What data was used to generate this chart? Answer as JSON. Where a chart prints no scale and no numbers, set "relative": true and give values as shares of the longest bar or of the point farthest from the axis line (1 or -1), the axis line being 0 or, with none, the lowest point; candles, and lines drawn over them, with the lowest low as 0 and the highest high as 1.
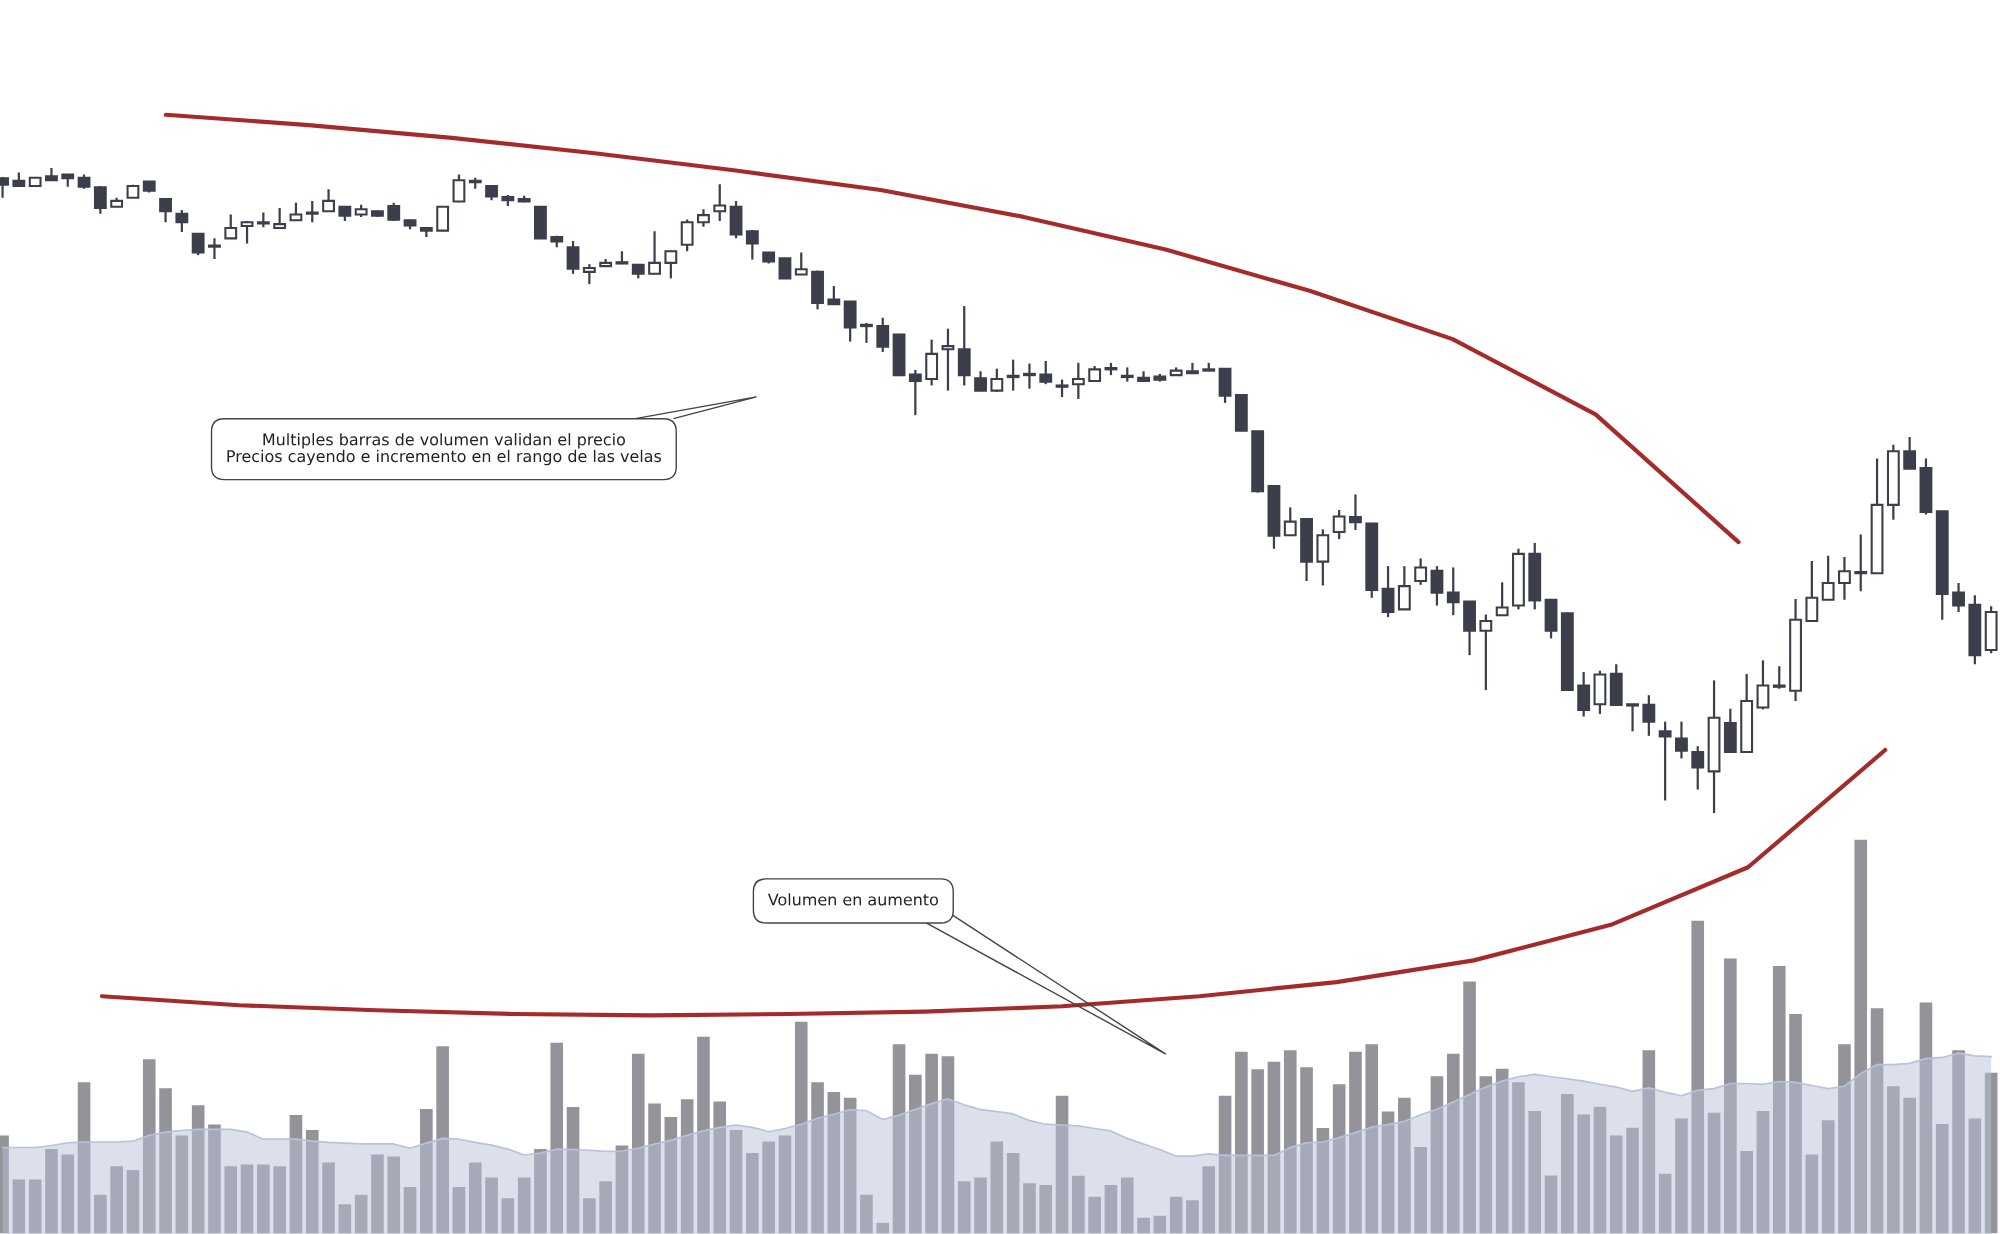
{
  "chart_data": [
    {
      "type": "candlestick",
      "relative": true,
      "color": "#3c3f4b",
      "categories": [
        null,
        null,
        null,
        null,
        null,
        null,
        null,
        null,
        null,
        null,
        null,
        null,
        null,
        null,
        null,
        null,
        null,
        null,
        null,
        null,
        null,
        null,
        null,
        null,
        null,
        null,
        null,
        null,
        null,
        null,
        null,
        null,
        null,
        null,
        null,
        null,
        null,
        null,
        null,
        null,
        null,
        null,
        null,
        null,
        null,
        null,
        null,
        null,
        null,
        null,
        null,
        null,
        null,
        null,
        null,
        null,
        null,
        null,
        null,
        null,
        null,
        null,
        null,
        null,
        null,
        null,
        null,
        null,
        null,
        null,
        null,
        null,
        null,
        null,
        null,
        null,
        null,
        null,
        null,
        null,
        null,
        null,
        null,
        null,
        null,
        null,
        null,
        null,
        null,
        null,
        null,
        null,
        null,
        null,
        null,
        null,
        null,
        null,
        null,
        null,
        null,
        null,
        null,
        null,
        null,
        null,
        null,
        null,
        null,
        null,
        null,
        null,
        null,
        null,
        null,
        null,
        null,
        null,
        null,
        null,
        null,
        null,
        null
      ],
      "ohlc": [
        [
          0.984,
          0.986,
          0.954,
          0.974
        ],
        [
          0.98,
          0.993,
          0.971,
          0.972
        ],
        [
          0.972,
          0.986,
          0.971,
          0.985
        ],
        [
          0.987,
          1.0,
          0.981,
          0.981
        ],
        [
          0.99,
          0.99,
          0.971,
          0.984
        ],
        [
          0.985,
          0.99,
          0.968,
          0.971
        ],
        [
          0.97,
          0.972,
          0.929,
          0.938
        ],
        [
          0.94,
          0.954,
          0.94,
          0.949
        ],
        [
          0.954,
          0.974,
          0.954,
          0.972
        ],
        [
          0.979,
          0.98,
          0.962,
          0.965
        ],
        [
          0.952,
          0.952,
          0.916,
          0.933
        ],
        [
          0.929,
          0.935,
          0.901,
          0.916
        ],
        [
          0.898,
          0.899,
          0.865,
          0.869
        ],
        [
          0.88,
          0.891,
          0.859,
          0.878
        ],
        [
          0.891,
          0.928,
          0.891,
          0.907
        ],
        [
          0.91,
          0.918,
          0.883,
          0.916
        ],
        [
          0.914,
          0.931,
          0.908,
          0.915
        ],
        [
          0.907,
          0.938,
          0.907,
          0.913
        ],
        [
          0.919,
          0.946,
          0.918,
          0.928
        ],
        [
          0.93,
          0.949,
          0.916,
          0.929
        ],
        [
          0.933,
          0.967,
          0.932,
          0.949
        ],
        [
          0.94,
          0.941,
          0.918,
          0.926
        ],
        [
          0.928,
          0.943,
          0.924,
          0.936
        ],
        [
          0.933,
          0.934,
          0.924,
          0.926
        ],
        [
          0.941,
          0.946,
          0.918,
          0.92
        ],
        [
          0.919,
          0.92,
          0.905,
          0.911
        ],
        [
          0.907,
          0.908,
          0.893,
          0.903
        ],
        [
          0.903,
          0.941,
          0.902,
          0.94
        ],
        [
          0.948,
          0.99,
          0.947,
          0.981
        ],
        [
          0.978,
          0.985,
          0.968,
          0.979
        ],
        [
          0.972,
          0.973,
          0.95,
          0.956
        ],
        [
          0.955,
          0.958,
          0.941,
          0.95
        ],
        [
          0.952,
          0.957,
          0.947,
          0.948
        ],
        [
          0.94,
          0.941,
          0.89,
          0.891
        ],
        [
          0.893,
          0.895,
          0.877,
          0.886
        ],
        [
          0.877,
          0.887,
          0.836,
          0.844
        ],
        [
          0.839,
          0.851,
          0.82,
          0.845
        ],
        [
          0.848,
          0.859,
          0.847,
          0.853
        ],
        [
          0.852,
          0.871,
          0.851,
          0.853
        ],
        [
          0.85,
          0.851,
          0.829,
          0.836
        ],
        [
          0.836,
          0.902,
          0.835,
          0.853
        ],
        [
          0.853,
          0.872,
          0.829,
          0.871
        ],
        [
          0.881,
          0.92,
          0.871,
          0.916
        ],
        [
          0.916,
          0.936,
          0.909,
          0.927
        ],
        [
          0.933,
          0.975,
          0.918,
          0.942
        ],
        [
          0.94,
          0.949,
          0.891,
          0.897
        ],
        [
          0.902,
          0.904,
          0.858,
          0.883
        ],
        [
          0.869,
          0.87,
          0.852,
          0.855
        ],
        [
          0.86,
          0.861,
          0.828,
          0.829
        ],
        [
          0.835,
          0.869,
          0.834,
          0.843
        ],
        [
          0.839,
          0.841,
          0.781,
          0.791
        ],
        [
          0.796,
          0.817,
          0.788,
          0.789
        ],
        [
          0.793,
          0.794,
          0.731,
          0.753
        ],
        [
          0.756,
          0.76,
          0.729,
          0.755
        ],
        [
          0.755,
          0.768,
          0.715,
          0.723
        ],
        [
          0.742,
          0.743,
          0.678,
          0.679
        ],
        [
          0.68,
          0.687,
          0.617,
          0.67
        ],
        [
          0.673,
          0.734,
          0.663,
          0.712
        ],
        [
          0.719,
          0.751,
          0.655,
          0.724
        ],
        [
          0.719,
          0.786,
          0.663,
          0.679
        ],
        [
          0.674,
          0.685,
          0.654,
          0.655
        ],
        [
          0.655,
          0.689,
          0.653,
          0.673
        ],
        [
          0.676,
          0.703,
          0.655,
          0.677
        ],
        [
          0.68,
          0.697,
          0.658,
          0.679
        ],
        [
          0.68,
          0.701,
          0.665,
          0.669
        ],
        [
          0.661,
          0.672,
          0.645,
          0.662
        ],
        [
          0.665,
          0.698,
          0.642,
          0.673
        ],
        [
          0.67,
          0.693,
          0.669,
          0.688
        ],
        [
          0.688,
          0.698,
          0.679,
          0.689
        ],
        [
          0.676,
          0.691,
          0.669,
          0.677
        ],
        [
          0.675,
          0.685,
          0.669,
          0.67
        ],
        [
          0.677,
          0.681,
          0.669,
          0.672
        ],
        [
          0.679,
          0.691,
          0.678,
          0.686
        ],
        [
          0.685,
          0.698,
          0.681,
          0.682
        ],
        [
          0.686,
          0.698,
          0.685,
          0.687
        ],
        [
          0.689,
          0.69,
          0.636,
          0.647
        ],
        [
          0.648,
          0.649,
          0.592,
          0.593
        ],
        [
          0.592,
          0.593,
          0.497,
          0.499
        ],
        [
          0.507,
          0.508,
          0.41,
          0.43
        ],
        [
          0.431,
          0.474,
          0.43,
          0.452
        ],
        [
          0.456,
          0.457,
          0.36,
          0.39
        ],
        [
          0.39,
          0.44,
          0.353,
          0.431
        ],
        [
          0.436,
          0.47,
          0.425,
          0.46
        ],
        [
          0.459,
          0.494,
          0.439,
          0.451
        ],
        [
          0.449,
          0.45,
          0.334,
          0.346
        ],
        [
          0.348,
          0.383,
          0.304,
          0.312
        ],
        [
          0.316,
          0.383,
          0.315,
          0.352
        ],
        [
          0.36,
          0.395,
          0.354,
          0.381
        ],
        [
          0.376,
          0.383,
          0.322,
          0.342
        ],
        [
          0.342,
          0.381,
          0.307,
          0.327
        ],
        [
          0.328,
          0.329,
          0.245,
          0.283
        ],
        [
          0.283,
          0.308,
          0.191,
          0.298
        ],
        [
          0.307,
          0.358,
          0.306,
          0.319
        ],
        [
          0.322,
          0.41,
          0.316,
          0.402
        ],
        [
          0.402,
          0.419,
          0.316,
          0.33
        ],
        [
          0.331,
          0.332,
          0.271,
          0.283
        ],
        [
          0.31,
          0.311,
          0.19,
          0.191
        ],
        [
          0.198,
          0.219,
          0.15,
          0.16
        ],
        [
          0.169,
          0.221,
          0.154,
          0.215
        ],
        [
          0.216,
          0.231,
          0.167,
          0.168
        ],
        [
          0.168,
          0.169,
          0.127,
          0.167
        ],
        [
          0.168,
          0.183,
          0.12,
          0.142
        ],
        [
          0.127,
          0.142,
          0.02,
          0.119
        ],
        [
          0.116,
          0.142,
          0.085,
          0.097
        ],
        [
          0.095,
          0.104,
          0.037,
          0.071
        ],
        [
          0.065,
          0.206,
          0.0,
          0.148
        ],
        [
          0.14,
          0.162,
          0.094,
          0.095
        ],
        [
          0.095,
          0.216,
          0.094,
          0.174
        ],
        [
          0.164,
          0.237,
          0.161,
          0.198
        ],
        [
          0.196,
          0.228,
          0.193,
          0.197
        ],
        [
          0.19,
          0.332,
          0.174,
          0.3
        ],
        [
          0.298,
          0.391,
          0.297,
          0.334
        ],
        [
          0.331,
          0.399,
          0.33,
          0.357
        ],
        [
          0.357,
          0.397,
          0.331,
          0.375
        ],
        [
          0.372,
          0.432,
          0.344,
          0.373
        ],
        [
          0.372,
          0.55,
          0.371,
          0.478
        ],
        [
          0.478,
          0.571,
          0.455,
          0.561
        ],
        [
          0.561,
          0.583,
          0.533,
          0.534
        ],
        [
          0.535,
          0.55,
          0.463,
          0.467
        ],
        [
          0.468,
          0.469,
          0.3,
          0.34
        ],
        [
          0.342,
          0.357,
          0.312,
          0.322
        ],
        [
          0.323,
          0.338,
          0.231,
          0.245
        ],
        [
          0.253,
          0.321,
          0.248,
          0.312
        ]
      ],
      "annotations": [
        "Multiples barras de volumen validan el precio\nPrecios cayendo e incremento en el rango de las velas"
      ]
    },
    {
      "type": "bar",
      "relative": true,
      "categories": [
        null,
        null,
        null,
        null,
        null,
        null,
        null,
        null,
        null,
        null,
        null,
        null,
        null,
        null,
        null,
        null,
        null,
        null,
        null,
        null,
        null,
        null,
        null,
        null,
        null,
        null,
        null,
        null,
        null,
        null,
        null,
        null,
        null,
        null,
        null,
        null,
        null,
        null,
        null,
        null,
        null,
        null,
        null,
        null,
        null,
        null,
        null,
        null,
        null,
        null,
        null,
        null,
        null,
        null,
        null,
        null,
        null,
        null,
        null,
        null,
        null,
        null,
        null,
        null,
        null,
        null,
        null,
        null,
        null,
        null,
        null,
        null,
        null,
        null,
        null,
        null,
        null,
        null,
        null,
        null,
        null,
        null,
        null,
        null,
        null,
        null,
        null,
        null,
        null,
        null,
        null,
        null,
        null,
        null,
        null,
        null,
        null,
        null,
        null,
        null,
        null,
        null,
        null,
        null,
        null,
        null,
        null,
        null,
        null,
        null,
        null,
        null,
        null,
        null,
        null,
        null,
        null,
        null,
        null,
        null,
        null,
        null,
        null
      ],
      "series": [
        {
          "type": "bar",
          "color": "#939399",
          "values": [
            0.251,
            0.14,
            0.14,
            0.217,
            0.203,
            0.386,
            0.101,
            0.173,
            0.164,
            0.444,
            0.371,
            0.251,
            0.328,
            0.279,
            0.173,
            0.178,
            0.178,
            0.173,
            0.303,
            0.265,
            0.183,
            0.077,
            0.101,
            0.203,
            0.198,
            0.121,
            0.318,
            0.477,
            0.121,
            0.183,
            0.145,
            0.092,
            0.145,
            0.217,
            0.486,
            0.323,
            0.092,
            0.135,
            0.226,
            0.458,
            0.332,
            0.298,
            0.343,
            0.501,
            0.337,
            0.265,
            0.207,
            0.236,
            0.251,
            0.539,
            0.386,
            0.361,
            0.347,
            0.101,
            0.03,
            0.482,
            0.405,
            0.458,
            0.452,
            0.135,
            0.145,
            0.236,
            0.207,
            0.13,
            0.126,
            0.352,
            0.149,
            0.096,
            0.126,
            0.145,
            0.043,
            0.048,
            0.096,
            0.087,
            0.173,
            0.352,
            0.463,
            0.419,
            0.438,
            0.467,
            0.424,
            0.27,
            0.381,
            0.463,
            0.482,
            0.312,
            0.347,
            0.222,
            0.401,
            0.458,
            0.641,
            0.401,
            0.42,
            0.386,
            0.313,
            0.15,
            0.356,
            0.304,
            0.324,
            0.251,
            0.271,
            0.467,
            0.154,
            0.294,
            0.795,
            0.309,
            0.699,
            0.212,
            0.313,
            0.68,
            0.559,
            0.203,
            0.29,
            0.482,
            1.0,
            0.573,
            0.376,
            0.347,
            0.588,
            0.28,
            0.467,
            0.294,
            0.41
          ]
        },
        {
          "type": "area",
          "color": "#b9c2d8",
          "values": [
            0.219,
            0.219,
            0.219,
            0.224,
            0.231,
            0.233,
            0.233,
            0.233,
            0.235,
            0.25,
            0.258,
            0.262,
            0.265,
            0.265,
            0.265,
            0.258,
            0.24,
            0.24,
            0.24,
            0.235,
            0.232,
            0.23,
            0.228,
            0.228,
            0.228,
            0.217,
            0.23,
            0.242,
            0.24,
            0.232,
            0.225,
            0.215,
            0.2,
            0.205,
            0.215,
            0.214,
            0.212,
            0.209,
            0.21,
            0.217,
            0.228,
            0.237,
            0.25,
            0.261,
            0.27,
            0.276,
            0.27,
            0.259,
            0.267,
            0.278,
            0.293,
            0.303,
            0.315,
            0.312,
            0.29,
            0.301,
            0.315,
            0.33,
            0.342,
            0.327,
            0.315,
            0.31,
            0.304,
            0.287,
            0.278,
            0.276,
            0.274,
            0.267,
            0.261,
            0.242,
            0.228,
            0.214,
            0.197,
            0.197,
            0.203,
            0.199,
            0.199,
            0.199,
            0.199,
            0.219,
            0.231,
            0.233,
            0.244,
            0.257,
            0.271,
            0.277,
            0.285,
            0.302,
            0.316,
            0.334,
            0.353,
            0.372,
            0.387,
            0.398,
            0.404,
            0.398,
            0.393,
            0.387,
            0.379,
            0.372,
            0.361,
            0.37,
            0.359,
            0.35,
            0.364,
            0.368,
            0.381,
            0.381,
            0.379,
            0.386,
            0.384,
            0.376,
            0.368,
            0.374,
            0.406,
            0.429,
            0.429,
            0.432,
            0.444,
            0.447,
            0.458,
            0.451,
            0.449
          ]
        }
      ],
      "annotations": [
        "Volumen en aumento"
      ]
    },
    {
      "type": "line",
      "relative": true,
      "categories": [
        null,
        null,
        null,
        null,
        null,
        null,
        null,
        null,
        null,
        null,
        null,
        null
      ],
      "series": [
        {
          "color": "#a52a2a",
          "values": [
            1.0,
            0.976,
            0.946,
            0.91,
            0.869,
            0.824,
            0.761,
            0.684,
            0.588,
            0.475,
            0.299,
            0.0
          ]
        }
      ]
    },
    {
      "type": "line",
      "relative": true,
      "categories": [
        null,
        null,
        null,
        null,
        null,
        null,
        null,
        null,
        null,
        null,
        null,
        null,
        null,
        null
      ],
      "series": [
        {
          "color": "#a52a2a",
          "values": [
            0.072,
            0.038,
            0.019,
            0.005,
            0.0,
            0.005,
            0.014,
            0.034,
            0.072,
            0.125,
            0.207,
            0.341,
            0.558,
            1.0
          ]
        }
      ]
    }
  ]
}
